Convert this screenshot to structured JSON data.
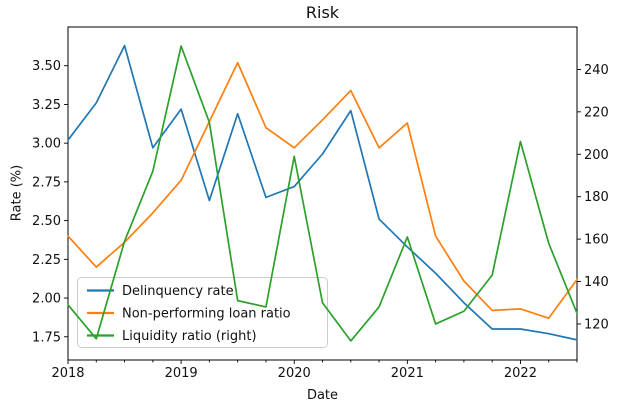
{
  "chart_data": {
    "type": "line",
    "title": "Risk",
    "xlabel": "Date",
    "ylabel": "Rate (%)",
    "categories": [
      "2018-Q1",
      "2018-Q2",
      "2018-Q3",
      "2018-Q4",
      "2019-Q1",
      "2019-Q2",
      "2019-Q3",
      "2019-Q4",
      "2020-Q1",
      "2020-Q2",
      "2020-Q3",
      "2020-Q4",
      "2021-Q1",
      "2021-Q2",
      "2021-Q3",
      "2021-Q4",
      "2022-Q1",
      "2022-Q2",
      "2022-Q3"
    ],
    "series": [
      {
        "name": "Delinquency rate",
        "axis": "left",
        "color": "#1f77b4",
        "values": [
          3.02,
          3.26,
          3.63,
          2.97,
          3.22,
          2.63,
          3.19,
          2.65,
          2.72,
          2.93,
          3.21,
          2.51,
          2.33,
          2.16,
          1.97,
          1.8,
          1.8,
          1.77,
          1.73
        ]
      },
      {
        "name": "Non-performing loan ratio",
        "axis": "left",
        "color": "#ff7f0e",
        "values": [
          2.4,
          2.2,
          2.36,
          2.55,
          2.76,
          3.14,
          3.52,
          3.1,
          2.97,
          3.15,
          3.34,
          2.97,
          3.13,
          2.4,
          2.11,
          1.92,
          1.93,
          1.87,
          2.12
        ]
      },
      {
        "name": "Liquidity ratio (right)",
        "axis": "right",
        "color": "#2ca02c",
        "values": [
          129,
          113,
          159,
          192,
          251,
          215,
          131,
          128,
          199,
          130,
          112,
          128,
          161,
          120,
          126,
          143,
          206,
          158,
          125
        ]
      }
    ],
    "left_axis": {
      "label": "Rate (%)",
      "ticks": [
        "1.75",
        "2.00",
        "2.25",
        "2.50",
        "2.75",
        "3.00",
        "3.25",
        "3.50"
      ],
      "min": 1.6,
      "max": 3.75
    },
    "right_axis": {
      "ticks": [
        "120",
        "140",
        "160",
        "180",
        "200",
        "220",
        "240"
      ],
      "min": 103,
      "max": 260
    },
    "x_axis": {
      "label": "Date",
      "tick_labels": [
        "2018",
        "2019",
        "2020",
        "2021",
        "2022"
      ],
      "start": 2018,
      "end": 2022.5,
      "minor_step": 0.25
    },
    "legend": {
      "position": "lower left",
      "entries": [
        "Delinquency rate",
        "Non-performing loan ratio",
        "Liquidity ratio (right)"
      ]
    }
  }
}
